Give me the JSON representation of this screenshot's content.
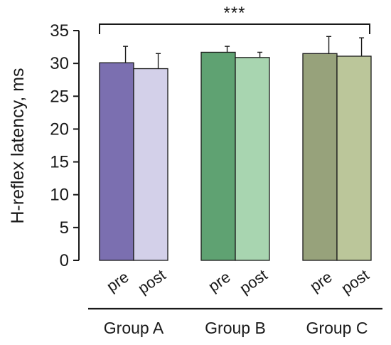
{
  "chart_data": {
    "type": "bar",
    "ylabel": "H-reflex latency, ms",
    "ylim": [
      0,
      35
    ],
    "yticks": [
      0,
      5,
      10,
      15,
      20,
      25,
      30,
      35
    ],
    "grid": false,
    "groups": [
      {
        "name": "Group A",
        "bars": [
          {
            "label": "pre",
            "value": 30.1,
            "error": 2.5,
            "color": "#7B6FB0"
          },
          {
            "label": "post",
            "value": 29.2,
            "error": 2.3,
            "color": "#D3D0E9"
          }
        ]
      },
      {
        "name": "Group B",
        "bars": [
          {
            "label": "pre",
            "value": 31.7,
            "error": 0.9,
            "color": "#5FA272"
          },
          {
            "label": "post",
            "value": 30.9,
            "error": 0.8,
            "color": "#A8D5B0"
          }
        ]
      },
      {
        "name": "Group C",
        "bars": [
          {
            "label": "pre",
            "value": 31.5,
            "error": 2.6,
            "color": "#97A27B"
          },
          {
            "label": "post",
            "value": 31.1,
            "error": 2.8,
            "color": "#BBC69A"
          }
        ]
      }
    ],
    "annotations": [
      {
        "text": "***",
        "spans_groups": [
          "Group A",
          "Group C"
        ]
      }
    ]
  }
}
